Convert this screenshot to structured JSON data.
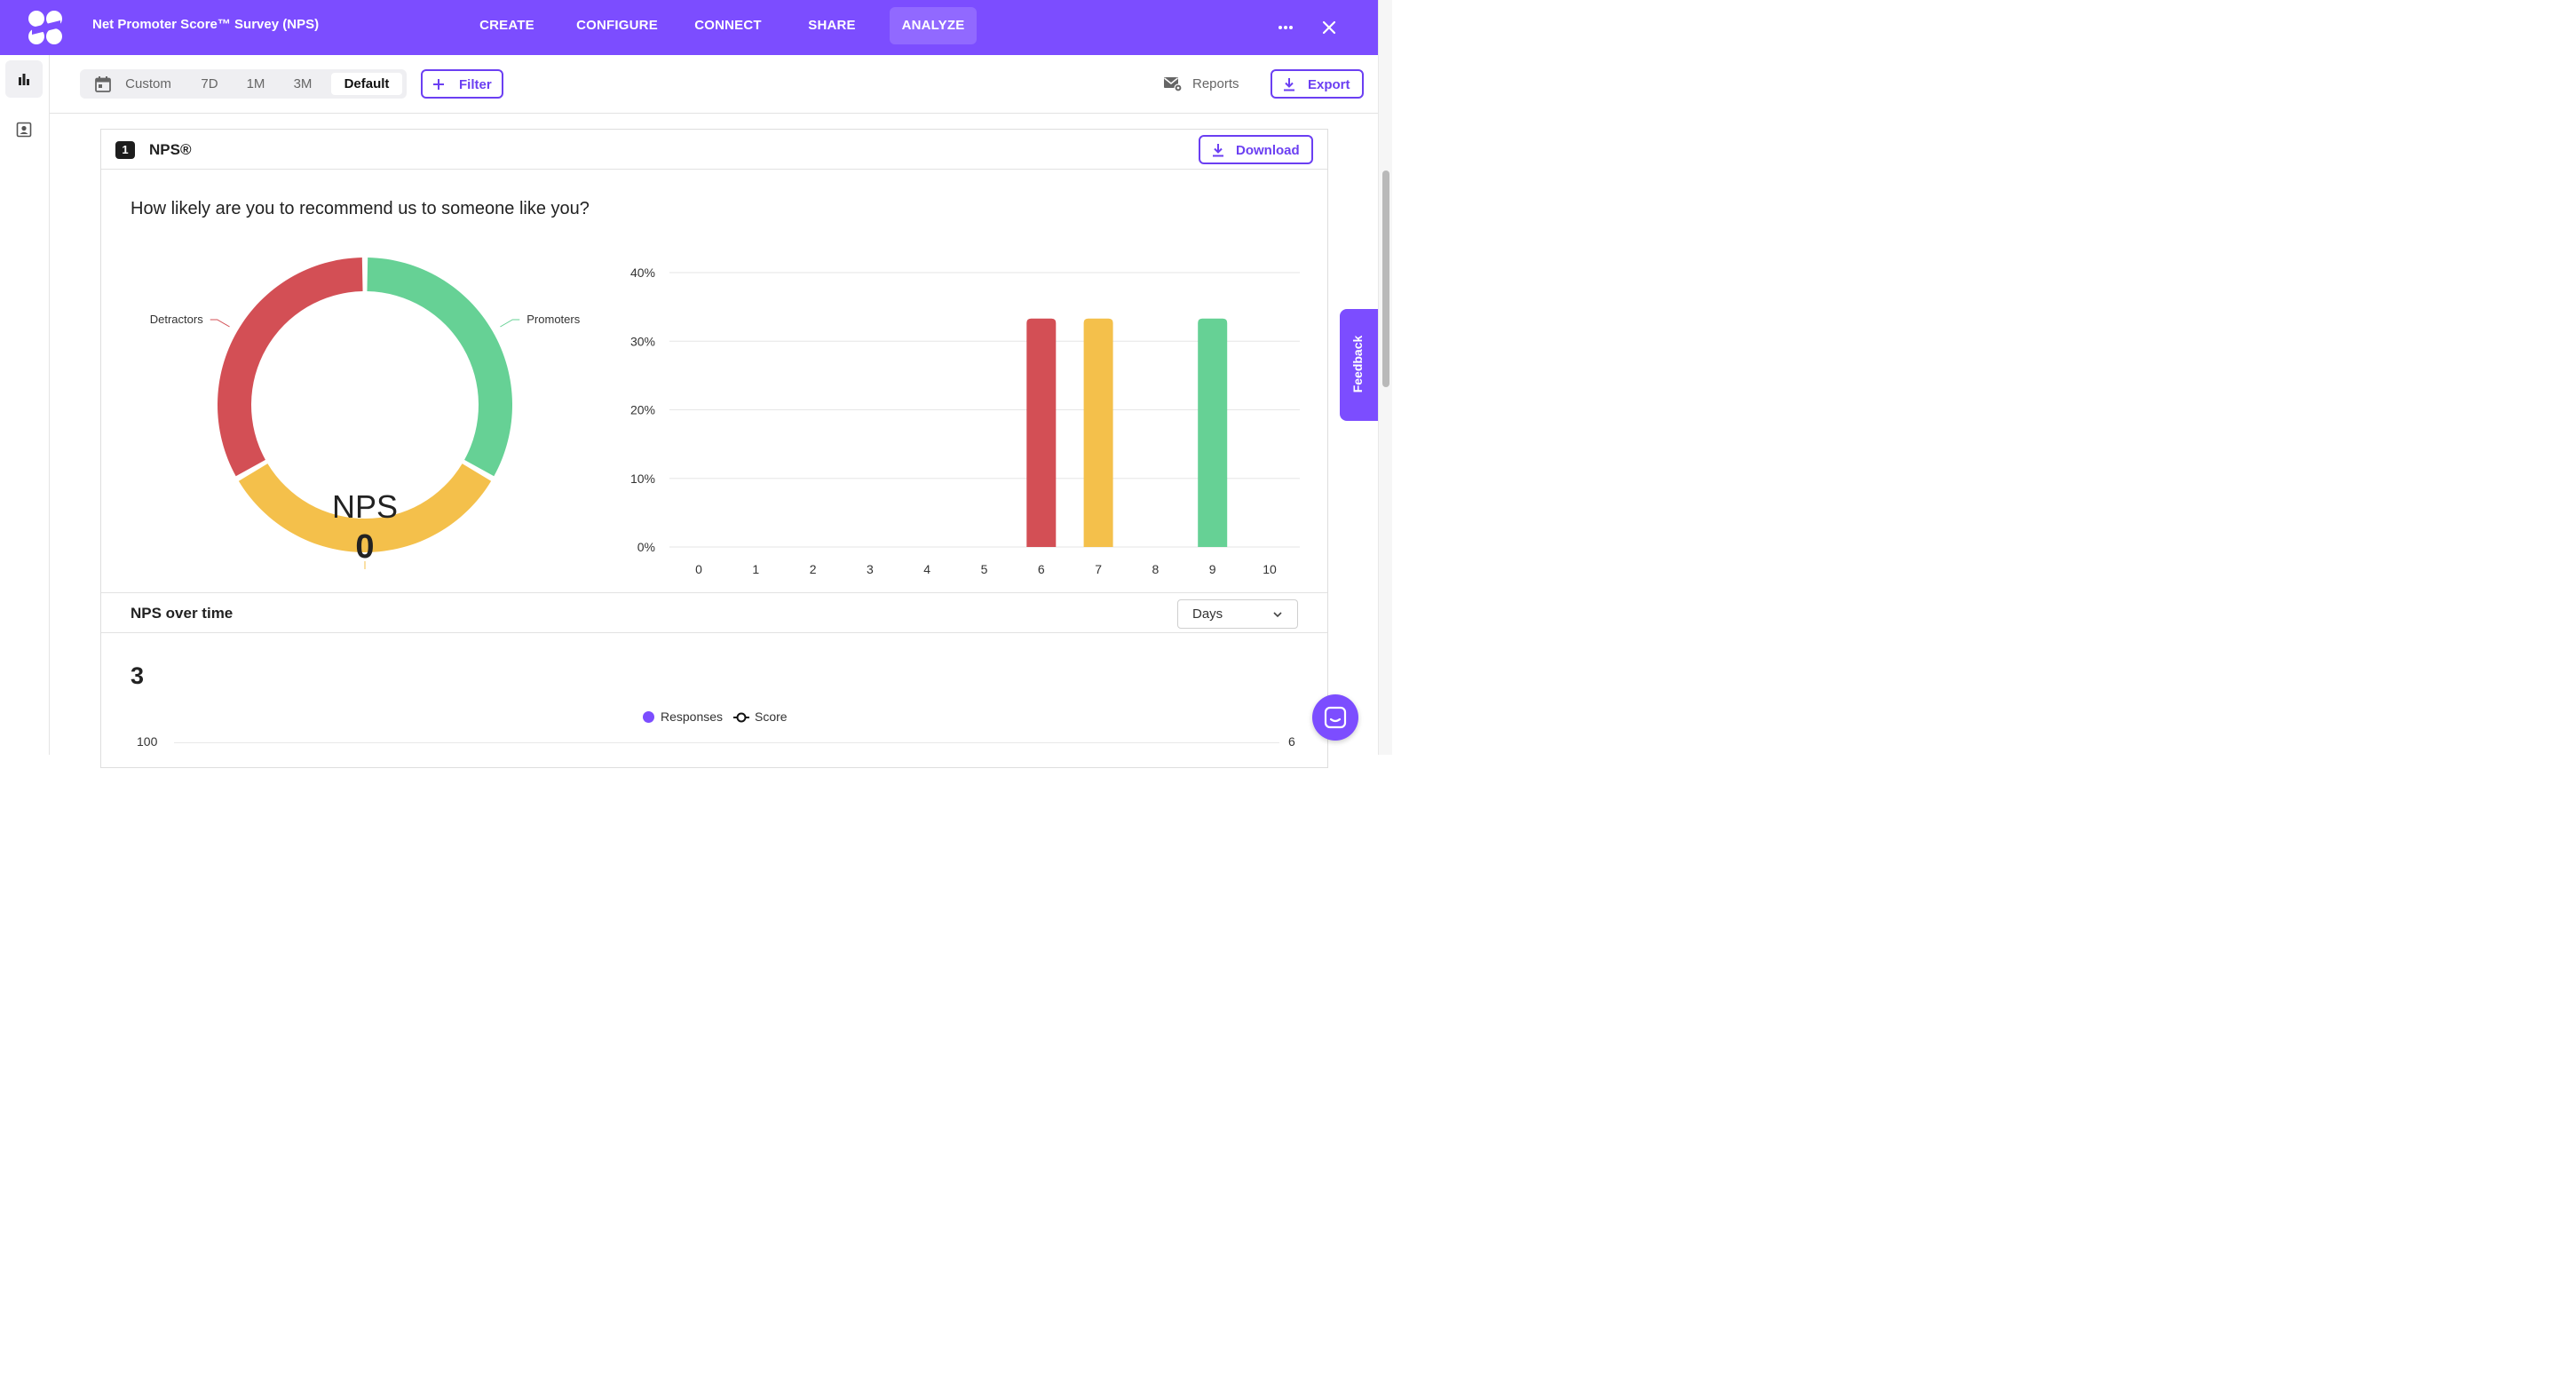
{
  "header": {
    "survey_title": "Net Promoter Score™ Survey (NPS)",
    "nav": [
      {
        "label": "CREATE",
        "active": false
      },
      {
        "label": "CONFIGURE",
        "active": false
      },
      {
        "label": "CONNECT",
        "active": false
      },
      {
        "label": "SHARE",
        "active": false
      },
      {
        "label": "ANALYZE",
        "active": true
      }
    ],
    "more_icon": "more-horizontal-icon",
    "close_icon": "close-icon",
    "brand_color": "#7c4dff"
  },
  "rail": {
    "items": [
      {
        "icon": "bar-chart-icon",
        "active": true
      },
      {
        "icon": "contact-card-icon",
        "active": false
      }
    ]
  },
  "toolbar": {
    "date_ranges": [
      {
        "label": "Custom",
        "icon": "calendar-icon",
        "selected": false
      },
      {
        "label": "7D",
        "selected": false
      },
      {
        "label": "1M",
        "selected": false
      },
      {
        "label": "3M",
        "selected": false
      },
      {
        "label": "Default",
        "selected": true
      }
    ],
    "filter_label": "Filter",
    "reports_label": "Reports",
    "export_label": "Export"
  },
  "card": {
    "number": "1",
    "title": "NPS®",
    "download_label": "Download",
    "question": "How likely are you to recommend us to someone like you?",
    "nps_label": "NPS",
    "nps_value": "0",
    "donut": {
      "type": "pie",
      "segments": [
        {
          "name": "Detractors",
          "value": 33.3,
          "color": "#d34f55"
        },
        {
          "name": "Promoters",
          "value": 33.3,
          "color": "#66d195"
        },
        {
          "name": "Passives",
          "value": 33.3,
          "color": "#f4c04b"
        }
      ]
    }
  },
  "chart_data": {
    "type": "bar",
    "categories": [
      "0",
      "1",
      "2",
      "3",
      "4",
      "5",
      "6",
      "7",
      "8",
      "9",
      "10"
    ],
    "values": [
      0,
      0,
      0,
      0,
      0,
      0,
      33.3,
      33.3,
      0,
      33.3,
      0
    ],
    "colors": [
      "#d34f55",
      "#d34f55",
      "#d34f55",
      "#d34f55",
      "#d34f55",
      "#d34f55",
      "#d34f55",
      "#f4c04b",
      "#f4c04b",
      "#66d195",
      "#66d195"
    ],
    "yticks": [
      "0%",
      "10%",
      "20%",
      "30%",
      "40%"
    ],
    "ylim": [
      0,
      40
    ],
    "grid": true
  },
  "over_time": {
    "title": "NPS over time",
    "interval": "Days",
    "total": "3",
    "legend": [
      {
        "name": "Responses",
        "color": "#7c4dff"
      },
      {
        "name": "Score",
        "color": "#111111"
      }
    ],
    "left_axis_top": "100",
    "right_axis_top": "6"
  },
  "feedback_label": "Feedback"
}
